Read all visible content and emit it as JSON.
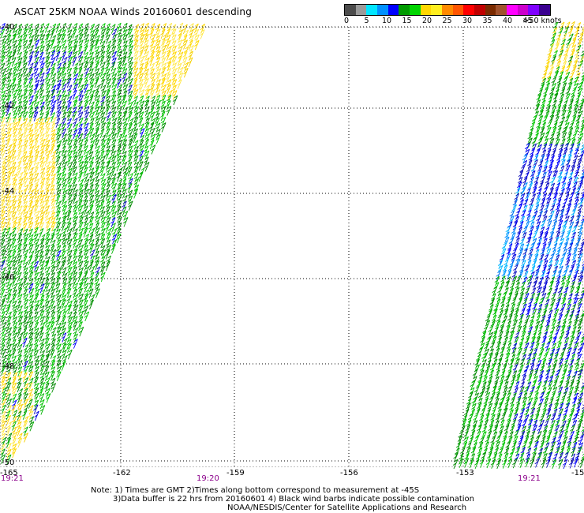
{
  "title": "ASCAT 25KM NOAA Winds 20160601 descending",
  "legend": {
    "unit_label": ">50 knots",
    "ticks": [
      "0",
      "5",
      "10",
      "15",
      "20",
      "25",
      "30",
      "35",
      "40",
      "45"
    ],
    "colors": [
      "#4c4c4c",
      "#9a9a9a",
      "#00e5ff",
      "#0090ff",
      "#0000ff",
      "#009a00",
      "#00d400",
      "#ffd700",
      "#ffee20",
      "#ff8a00",
      "#ff5500",
      "#ff0000",
      "#c00000",
      "#7a2a00",
      "#a0522d",
      "#ff00ff",
      "#cc00cc",
      "#7f00ff",
      "#3a0090"
    ]
  },
  "map": {
    "lat_labels": [
      "-40",
      "-42",
      "-44",
      "-46",
      "-48",
      "-50"
    ],
    "lon_labels": [
      "-165",
      "-162",
      "-159",
      "-156",
      "-153",
      "-15"
    ],
    "times": [
      "19:21",
      "19:20",
      "19:21"
    ]
  },
  "notes": {
    "line1": "Note: 1) Times are GMT 2)Times along bottom correspond to measurement at -45S",
    "line2": "3)Data buffer is 22 hrs from 20160601 4) Black wind barbs indicate possible contamination",
    "line3": "NOAA/NESDIS/Center for Satellite Applications and Research"
  }
}
